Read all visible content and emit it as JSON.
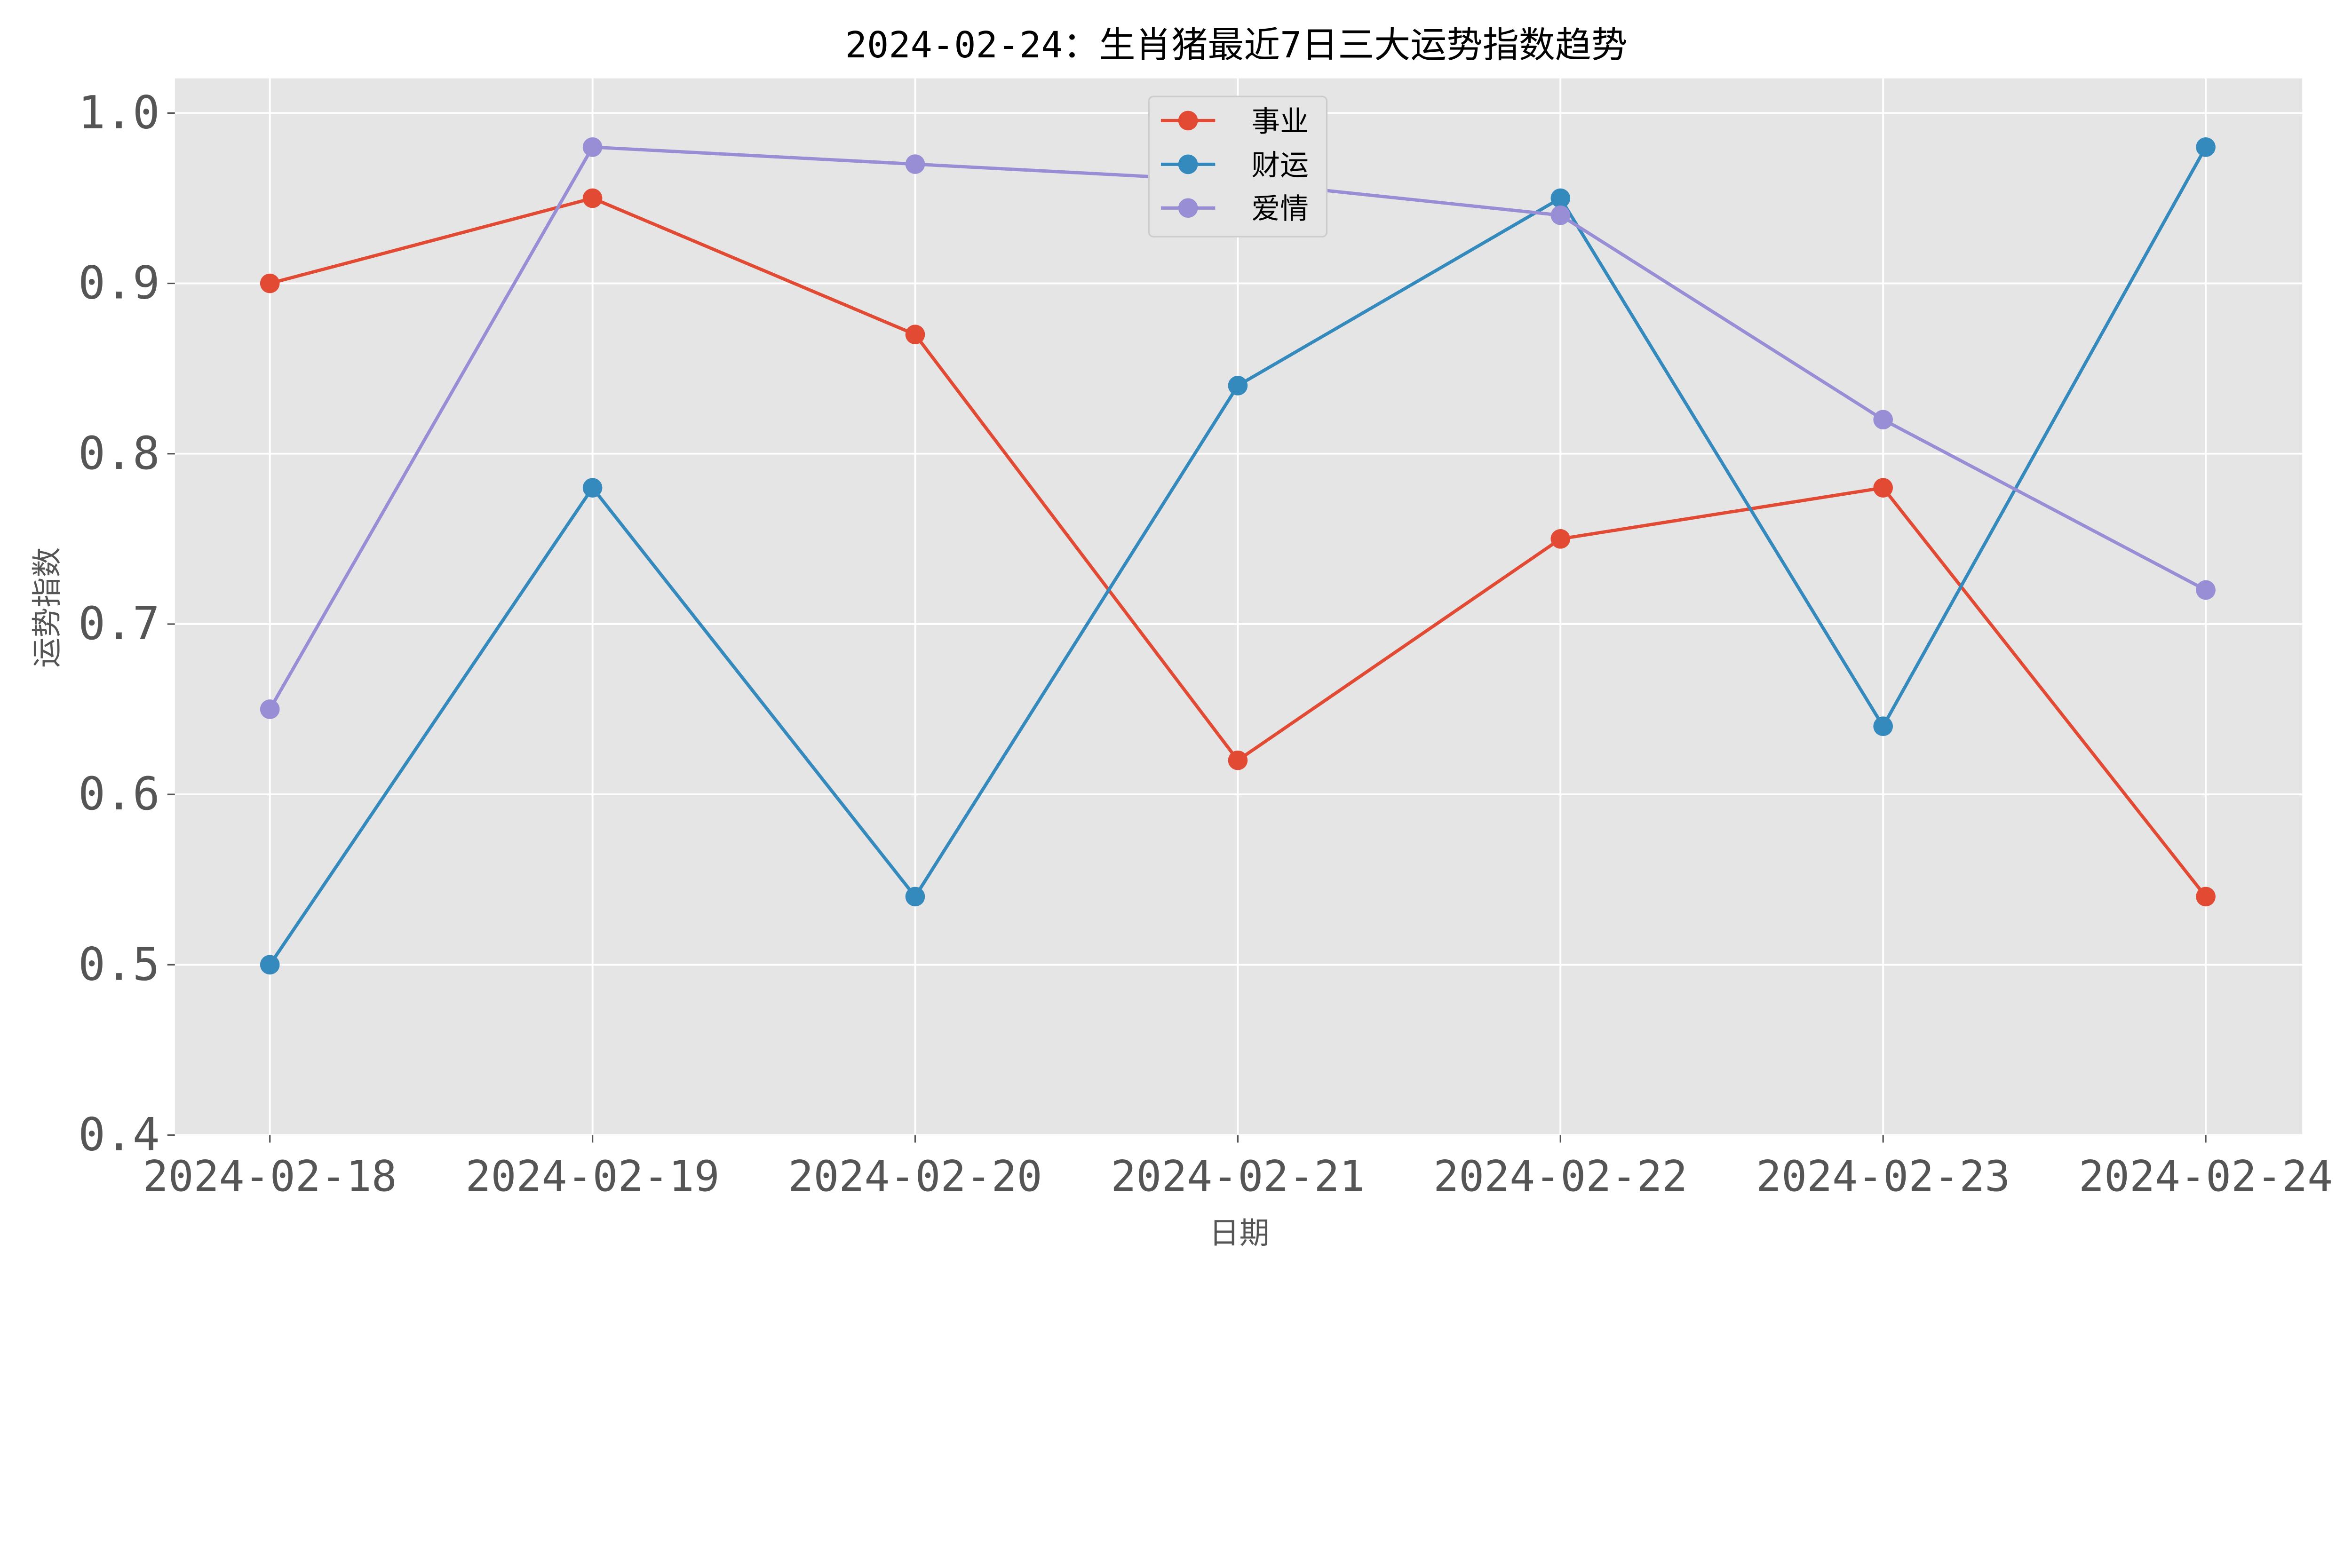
{
  "chart_data": {
    "type": "line",
    "title": "2024-02-24：生肖猪最近7日三大运势指数趋势",
    "xlabel": "日期",
    "ylabel": "运势指数",
    "categories": [
      "2024-02-18",
      "2024-02-19",
      "2024-02-20",
      "2024-02-21",
      "2024-02-22",
      "2024-02-23",
      "2024-02-24"
    ],
    "ylim": [
      0.4,
      1.02
    ],
    "yticks": [
      0.4,
      0.5,
      0.6,
      0.7,
      0.8,
      0.9,
      1.0
    ],
    "ytick_labels": [
      "0.4",
      "0.5",
      "0.6",
      "0.7",
      "0.8",
      "0.9",
      "1.0"
    ],
    "grid": true,
    "legend_position": "top-center",
    "background": "#E5E5E5",
    "series": [
      {
        "name": "事业",
        "color": "#E24A33",
        "values": [
          0.9,
          0.95,
          0.87,
          0.62,
          0.75,
          0.78,
          0.54
        ]
      },
      {
        "name": "财运",
        "color": "#348ABD",
        "values": [
          0.5,
          0.78,
          0.54,
          0.84,
          0.95,
          0.64,
          0.98
        ]
      },
      {
        "name": "爱情",
        "color": "#988ED5",
        "values": [
          0.65,
          0.98,
          0.97,
          0.96,
          0.94,
          0.82,
          0.72
        ]
      }
    ]
  }
}
